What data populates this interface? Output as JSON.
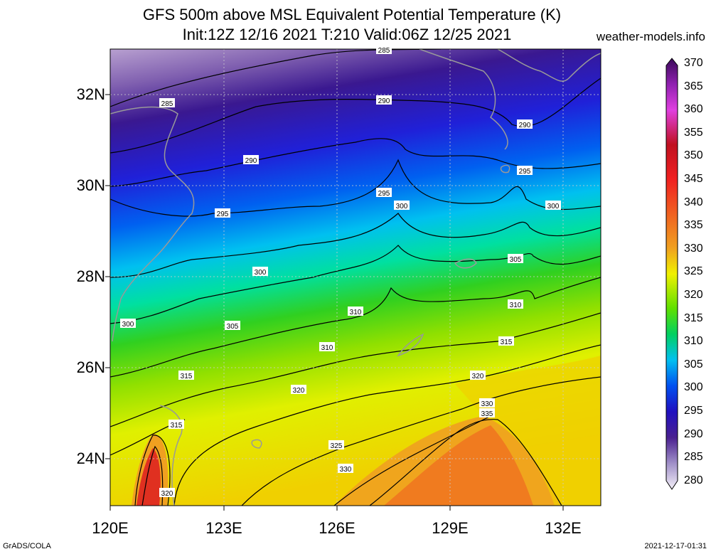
{
  "title_line1": "GFS 500m above MSL Equivalent Potential Temperature (K)",
  "title_line2": "Init:12Z 12/16 2021 T:210 Valid:06Z 12/25 2021",
  "site": "weather-models.info",
  "lat_labels": [
    "32N",
    "30N",
    "28N",
    "26N",
    "24N"
  ],
  "lon_labels": [
    "120E",
    "123E",
    "126E",
    "129E",
    "132E"
  ],
  "colorbar": {
    "labels": [
      "370",
      "365",
      "360",
      "355",
      "350",
      "345",
      "340",
      "335",
      "330",
      "325",
      "320",
      "315",
      "310",
      "305",
      "300",
      "295",
      "290",
      "285",
      "280"
    ],
    "colors": [
      "#3a0a5a",
      "#7a1a9a",
      "#c020c0",
      "#e040e0",
      "#d01020",
      "#e02020",
      "#f04018",
      "#f07020",
      "#f09020",
      "#f0c020",
      "#f0f000",
      "#a0e000",
      "#30d020",
      "#00e080",
      "#00c0f0",
      "#0060f0",
      "#2020e0",
      "#3010b0",
      "#5020a0",
      "#8060b0",
      "#c0b0d8",
      "#ece4f4"
    ]
  },
  "contour_labels": [
    "285",
    "285",
    "290",
    "290",
    "290",
    "295",
    "295",
    "295",
    "300",
    "300",
    "300",
    "300",
    "305",
    "305",
    "310",
    "310",
    "310",
    "315",
    "315",
    "315",
    "320",
    "320",
    "320",
    "325",
    "330",
    "330",
    "335"
  ],
  "footer_left": "GrADS/COLA",
  "footer_right": "2021-12-17-01:31"
}
